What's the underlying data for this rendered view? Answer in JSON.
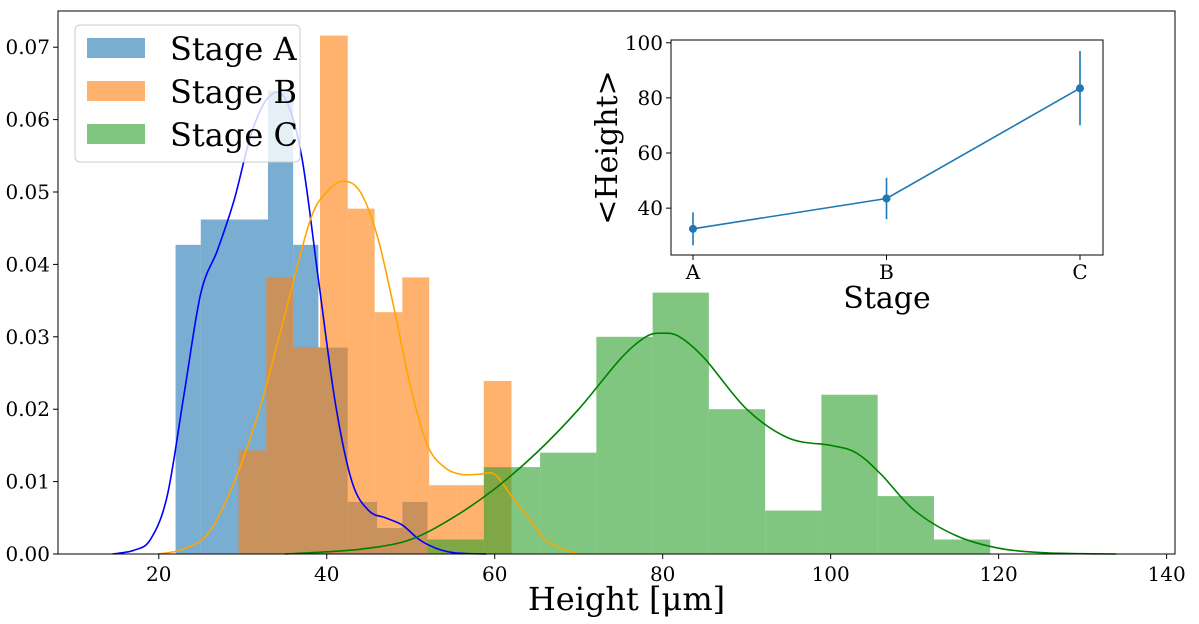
{
  "chart_data": [
    {
      "type": "histogram",
      "xlabel": "Height [μm]",
      "ylabel": "",
      "xlim": [
        8,
        141
      ],
      "ylim": [
        0,
        0.075
      ],
      "xticks": [
        20,
        40,
        60,
        80,
        100,
        120,
        140
      ],
      "yticks": [
        0.0,
        0.01,
        0.02,
        0.03,
        0.04,
        0.05,
        0.06,
        0.07
      ],
      "ytick_labels": [
        "0.00",
        "0.01",
        "0.02",
        "0.03",
        "0.04",
        "0.05",
        "0.06",
        "0.07"
      ],
      "legend": {
        "position": "top-left"
      },
      "series": [
        {
          "name": "Stage A",
          "color": "#1f77b4",
          "kde_color": "#0000ff",
          "bins": [
            {
              "x0": 22.0,
              "x1": 25.0,
              "y": 0.0427
            },
            {
              "x0": 25.0,
              "x1": 29.0,
              "y": 0.0462
            },
            {
              "x0": 29.0,
              "x1": 33.0,
              "y": 0.0462
            },
            {
              "x0": 33.0,
              "x1": 36.0,
              "y": 0.064
            },
            {
              "x0": 36.0,
              "x1": 39.0,
              "y": 0.0427
            },
            {
              "x0": 39.0,
              "x1": 42.5,
              "y": 0.0285
            },
            {
              "x0": 42.5,
              "x1": 46.0,
              "y": 0.0072
            },
            {
              "x0": 46.0,
              "x1": 49.0,
              "y": 0.0036
            },
            {
              "x0": 49.0,
              "x1": 52.0,
              "y": 0.0072
            },
            {
              "x0": 52.0,
              "x1": 55.5,
              "y": 0.0
            },
            {
              "x0": 55.5,
              "x1": 59.0,
              "y": 0.0
            }
          ],
          "kde": {
            "x": [
              14.5,
              17,
              19,
              21,
              23,
              25,
              27,
              29,
              31,
              33,
              35,
              37,
              39,
              41,
              43,
              45,
              47,
              49,
              51,
              53,
              55,
              57,
              59
            ],
            "y": [
              0.0,
              0.0005,
              0.002,
              0.008,
              0.022,
              0.036,
              0.042,
              0.049,
              0.058,
              0.063,
              0.063,
              0.055,
              0.038,
              0.021,
              0.01,
              0.006,
              0.005,
              0.004,
              0.002,
              0.0008,
              0.0002,
              5e-05,
              0.0
            ]
          }
        },
        {
          "name": "Stage B",
          "color": "#ff7f0e",
          "kde_color": "#ffa500",
          "bins": [
            {
              "x0": 29.5,
              "x1": 32.8,
              "y": 0.0143
            },
            {
              "x0": 32.8,
              "x1": 36.0,
              "y": 0.0382
            },
            {
              "x0": 36.0,
              "x1": 39.2,
              "y": 0.0286
            },
            {
              "x0": 39.2,
              "x1": 42.5,
              "y": 0.0716
            },
            {
              "x0": 42.5,
              "x1": 45.7,
              "y": 0.0477
            },
            {
              "x0": 45.7,
              "x1": 49.0,
              "y": 0.0334
            },
            {
              "x0": 49.0,
              "x1": 52.2,
              "y": 0.0382
            },
            {
              "x0": 52.2,
              "x1": 55.4,
              "y": 0.0095
            },
            {
              "x0": 55.4,
              "x1": 58.7,
              "y": 0.0095
            },
            {
              "x0": 58.7,
              "x1": 62.0,
              "y": 0.0239
            }
          ],
          "kde": {
            "x": [
              20,
              23,
              26,
              29,
              32,
              35,
              38,
              40,
              42,
              44,
              46,
              48,
              50,
              52,
              54,
              56,
              58,
              60,
              62,
              64,
              66,
              68,
              70
            ],
            "y": [
              0.0,
              0.0007,
              0.003,
              0.01,
              0.02,
              0.033,
              0.046,
              0.05,
              0.0515,
              0.05,
              0.044,
              0.034,
              0.023,
              0.015,
              0.012,
              0.011,
              0.011,
              0.011,
              0.008,
              0.005,
              0.002,
              0.0007,
              0.0
            ]
          }
        },
        {
          "name": "Stage C",
          "color": "#2ca02c",
          "kde_color": "#008000",
          "bins": [
            {
              "x0": 52.0,
              "x1": 58.7,
              "y": 0.002
            },
            {
              "x0": 58.7,
              "x1": 65.4,
              "y": 0.012
            },
            {
              "x0": 65.4,
              "x1": 72.1,
              "y": 0.014
            },
            {
              "x0": 72.1,
              "x1": 78.8,
              "y": 0.03
            },
            {
              "x0": 78.8,
              "x1": 85.5,
              "y": 0.0361
            },
            {
              "x0": 85.5,
              "x1": 92.2,
              "y": 0.02
            },
            {
              "x0": 92.2,
              "x1": 98.9,
              "y": 0.006
            },
            {
              "x0": 98.9,
              "x1": 105.6,
              "y": 0.022
            },
            {
              "x0": 105.6,
              "x1": 112.3,
              "y": 0.008
            },
            {
              "x0": 112.3,
              "x1": 119.0,
              "y": 0.002
            }
          ],
          "kde": {
            "x": [
              35,
              40,
              45,
              50,
              55,
              60,
              65,
              70,
              75,
              78,
              80,
              82,
              85,
              90,
              95,
              100,
              103,
              106,
              110,
              115,
              120,
              125,
              130,
              134
            ],
            "y": [
              0.0,
              0.0003,
              0.0008,
              0.002,
              0.005,
              0.009,
              0.014,
              0.02,
              0.027,
              0.03,
              0.0305,
              0.03,
              0.027,
              0.02,
              0.016,
              0.015,
              0.014,
              0.011,
              0.006,
              0.0025,
              0.0008,
              0.0002,
              5e-05,
              0.0
            ]
          }
        }
      ]
    },
    {
      "type": "line",
      "title": "",
      "xlabel": "Stage",
      "ylabel": "<Height>",
      "categories": [
        "A",
        "B",
        "C"
      ],
      "values": [
        32.5,
        43.5,
        83.5
      ],
      "errors": [
        6.0,
        7.5,
        13.5
      ],
      "ylim": [
        23,
        101
      ],
      "yticks": [
        40,
        60,
        80,
        100
      ],
      "color": "#1f77b4"
    }
  ]
}
